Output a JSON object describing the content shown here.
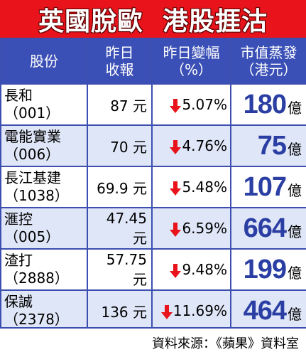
{
  "title": "英國脫歐  港股捱沽",
  "colors": {
    "title_bg": "#e8131b",
    "header_bg": "#3b50b6",
    "row_alt_bg": "#dfe6f7",
    "arrow": "#e8131b",
    "cap_number": "#2a3ea3"
  },
  "table": {
    "headers": [
      {
        "line1": "股份",
        "line2": ""
      },
      {
        "line1": "昨日",
        "line2": "收報"
      },
      {
        "line1": "昨日變幅",
        "line2": "（%）"
      },
      {
        "line1": "市值蒸發",
        "line2": "（港元）"
      }
    ],
    "rows": [
      {
        "name": "長和",
        "code": "（001）",
        "close": "87 元",
        "change": "5.07%",
        "change_icon": "down-arrow-icon",
        "cap_loss": "180",
        "cap_unit": "億"
      },
      {
        "name": "電能實業",
        "code": "（006）",
        "close": "70 元",
        "change": "4.76%",
        "change_icon": "down-arrow-icon",
        "cap_loss": "75",
        "cap_unit": "億"
      },
      {
        "name": "長江基建",
        "code": "（1038）",
        "close": "69.9 元",
        "change": "5.48%",
        "change_icon": "down-arrow-icon",
        "cap_loss": "107",
        "cap_unit": "億"
      },
      {
        "name": "滙控",
        "code": "（005）",
        "close": "47.45 元",
        "change": "6.59%",
        "change_icon": "down-arrow-icon",
        "cap_loss": "664",
        "cap_unit": "億"
      },
      {
        "name": "渣打",
        "code": "（2888）",
        "close": "57.75 元",
        "change": "9.48%",
        "change_icon": "down-arrow-icon",
        "cap_loss": "199",
        "cap_unit": "億"
      },
      {
        "name": "保誠",
        "code": "（2378）",
        "close": "136 元",
        "change": "11.69%",
        "change_icon": "down-arrow-icon",
        "cap_loss": "464",
        "cap_unit": "億"
      }
    ]
  },
  "source": "資料來源：《蘋果》資料室"
}
